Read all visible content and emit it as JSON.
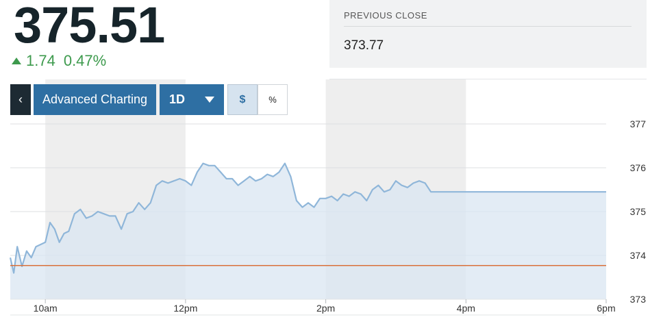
{
  "quote": {
    "last": "375.51",
    "change": "1.74",
    "change_pct": "0.47%"
  },
  "previous_close": {
    "label": "PREVIOUS CLOSE",
    "value": "373.77"
  },
  "toolbar": {
    "back_icon": "chevron-left-icon",
    "advanced_label": "Advanced Charting",
    "range_label": "1D",
    "range_icon": "caret-down-icon",
    "dollar_label": "$",
    "percent_label": "%"
  },
  "colors": {
    "up": "#3d9a4d",
    "line": "#8fb6d9",
    "area": "#dae6f1",
    "prev_close_line": "#d9703a",
    "band": "#eeeeee",
    "button": "#2e6fa3"
  },
  "chart_data": {
    "type": "area",
    "title": "",
    "xlabel": "",
    "ylabel": "",
    "x_ticks": [
      "10am",
      "12pm",
      "2pm",
      "4pm",
      "6pm"
    ],
    "y_ticks": [
      "373",
      "374",
      "375",
      "376",
      "377"
    ],
    "ylim": [
      373,
      377
    ],
    "xlim": [
      "9:30",
      "18:00"
    ],
    "grid": true,
    "shaded_bands": [
      [
        "10:00",
        "12:00"
      ],
      [
        "14:00",
        "16:00"
      ]
    ],
    "reference_line": {
      "value": 373.77
    },
    "series": [
      {
        "x": [
          "9:30",
          "9:33",
          "9:36",
          "9:40",
          "9:44",
          "9:48",
          "9:52",
          "9:56",
          "10:00",
          "10:04",
          "10:08",
          "10:12",
          "10:16",
          "10:20",
          "10:25",
          "10:30",
          "10:35",
          "10:40",
          "10:45",
          "10:50",
          "10:55",
          "11:00",
          "11:05",
          "11:10",
          "11:15",
          "11:20",
          "11:25",
          "11:30",
          "11:35",
          "11:40",
          "11:45",
          "11:50",
          "11:55",
          "12:00",
          "12:05",
          "12:10",
          "12:15",
          "12:20",
          "12:25",
          "12:30",
          "12:35",
          "12:40",
          "12:45",
          "12:50",
          "12:55",
          "13:00",
          "13:05",
          "13:10",
          "13:15",
          "13:20",
          "13:25",
          "13:30",
          "13:35",
          "13:40",
          "13:45",
          "13:50",
          "13:55",
          "14:00",
          "14:05",
          "14:10",
          "14:15",
          "14:20",
          "14:25",
          "14:30",
          "14:35",
          "14:40",
          "14:45",
          "14:50",
          "14:55",
          "15:00",
          "15:05",
          "15:10",
          "15:15",
          "15:20",
          "15:25",
          "15:30",
          "15:35",
          "15:40",
          "15:45",
          "15:50",
          "15:55",
          "16:00",
          "16:05",
          "16:10",
          "16:15",
          "16:20",
          "16:25",
          "16:30",
          "16:35",
          "16:40",
          "16:45",
          "16:50",
          "16:55",
          "17:00",
          "17:05",
          "17:10",
          "17:15",
          "17:20",
          "17:25",
          "17:30",
          "17:35",
          "17:40",
          "17:45",
          "17:50",
          "17:55",
          "18:00"
        ],
        "values": [
          373.95,
          373.6,
          374.2,
          373.75,
          374.1,
          373.95,
          374.2,
          374.25,
          374.3,
          374.75,
          374.6,
          374.3,
          374.5,
          374.55,
          374.95,
          375.05,
          374.85,
          374.9,
          375.0,
          374.95,
          374.9,
          374.9,
          374.6,
          374.95,
          375.0,
          375.2,
          375.05,
          375.2,
          375.6,
          375.7,
          375.65,
          375.7,
          375.75,
          375.7,
          375.6,
          375.9,
          376.1,
          376.05,
          376.05,
          375.9,
          375.75,
          375.75,
          375.6,
          375.7,
          375.8,
          375.7,
          375.75,
          375.85,
          375.8,
          375.9,
          376.1,
          375.8,
          375.25,
          375.1,
          375.2,
          375.1,
          375.3,
          375.3,
          375.35,
          375.25,
          375.4,
          375.35,
          375.45,
          375.4,
          375.25,
          375.5,
          375.6,
          375.45,
          375.5,
          375.7,
          375.6,
          375.55,
          375.65,
          375.7,
          375.65,
          375.45,
          375.45,
          375.45,
          375.45,
          375.45,
          375.45,
          375.45,
          375.45,
          375.45,
          375.45,
          375.45,
          375.45,
          375.45,
          375.45,
          375.45,
          375.45,
          375.45,
          375.45,
          375.45,
          375.45,
          375.45,
          375.45,
          375.45,
          375.45,
          375.45,
          375.45,
          375.45,
          375.45,
          375.45,
          375.45,
          375.45
        ]
      }
    ]
  }
}
